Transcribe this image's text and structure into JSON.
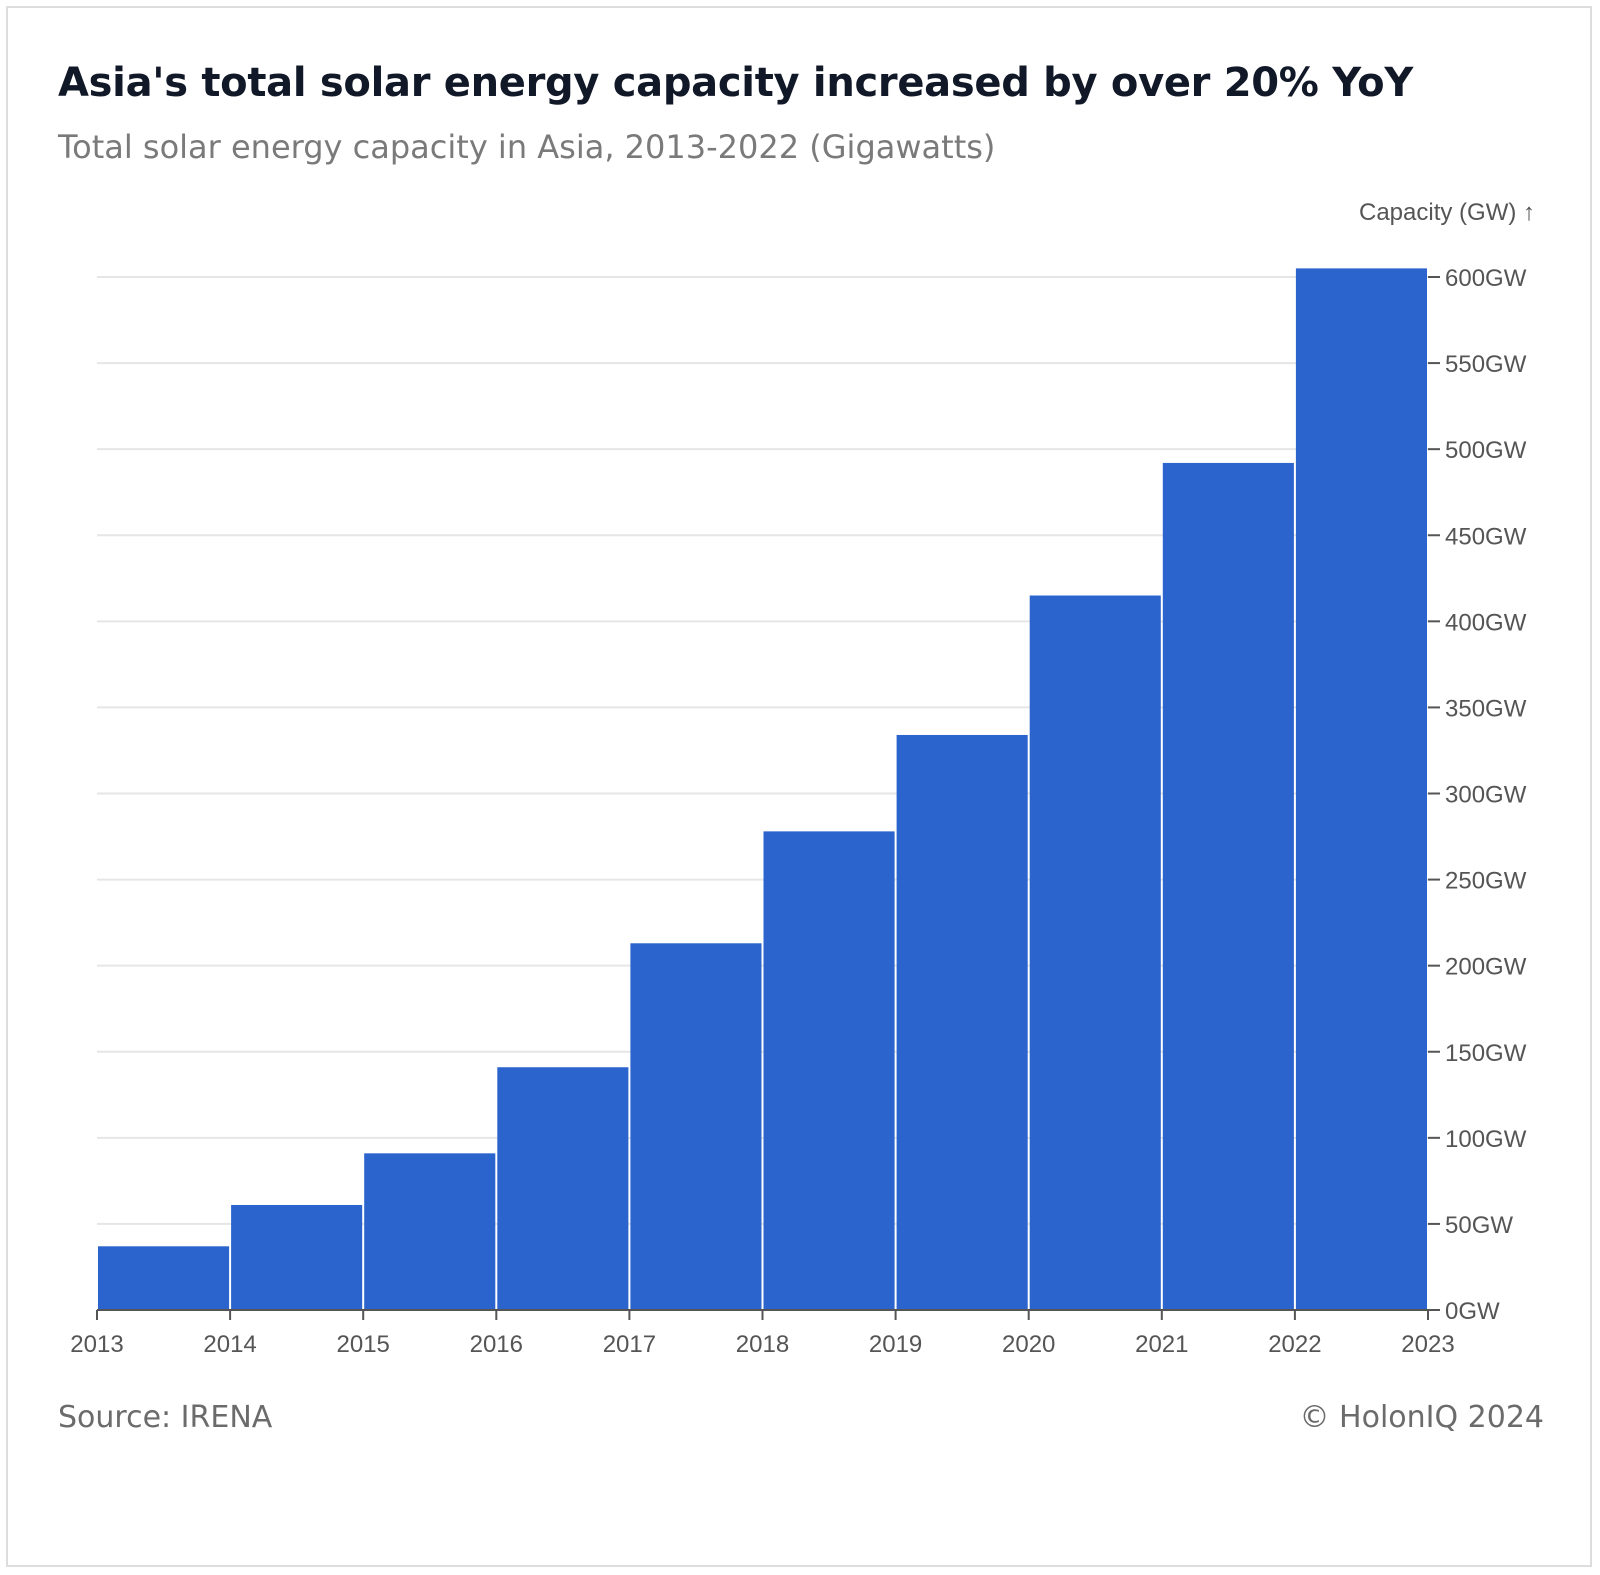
{
  "header": {
    "title": "Asia's total solar energy capacity increased by over 20% YoY",
    "subtitle": "Total solar energy capacity in Asia, 2013-2022 (Gigawatts)"
  },
  "footer": {
    "source": "Source: IRENA",
    "credit": "© HolonIQ 2024"
  },
  "colors": {
    "bar": "#2a64cc",
    "grid": "#e6e6e6",
    "axis": "#555555",
    "tick_text": "#555555"
  },
  "chart_data": {
    "type": "bar",
    "title": "Asia's total solar energy capacity increased by over 20% YoY",
    "subtitle": "Total solar energy capacity in Asia, 2013-2022 (Gigawatts)",
    "xlabel": "",
    "ylabel": "Capacity (GW) ↑",
    "y_axis_side": "right",
    "grid": true,
    "categories": [
      "2013",
      "2014",
      "2015",
      "2016",
      "2017",
      "2018",
      "2019",
      "2020",
      "2021",
      "2022"
    ],
    "bin_edges": [
      "2013",
      "2014",
      "2015",
      "2016",
      "2017",
      "2018",
      "2019",
      "2020",
      "2021",
      "2022",
      "2023"
    ],
    "values": [
      37,
      61,
      91,
      141,
      213,
      278,
      334,
      415,
      492,
      605
    ],
    "unit": "GW",
    "ylim": [
      0,
      600
    ],
    "yticks": [
      0,
      50,
      100,
      150,
      200,
      250,
      300,
      350,
      400,
      450,
      500,
      550,
      600
    ],
    "ytick_labels": [
      "0GW",
      "50GW",
      "100GW",
      "150GW",
      "200GW",
      "250GW",
      "300GW",
      "350GW",
      "400GW",
      "450GW",
      "500GW",
      "550GW",
      "600GW"
    ]
  }
}
